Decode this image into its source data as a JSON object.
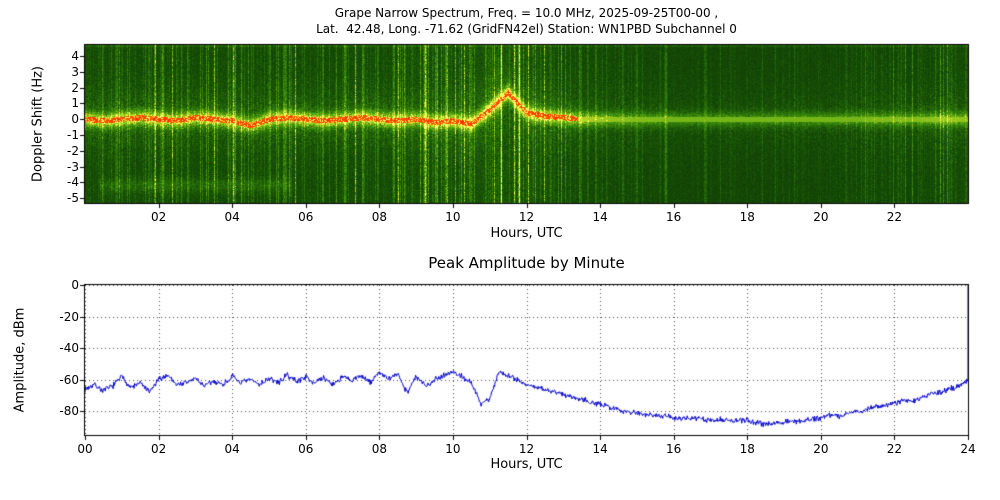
{
  "figure": {
    "background_color": "#ffffff",
    "line_blue": "#0000cd",
    "spectrogram_colors": {
      "background": "#0a3d02",
      "mid": "#3a8c0c",
      "bright": "#ffff50",
      "peak": "#ff3200"
    }
  },
  "spectrogram": {
    "title_line1": "Grape Narrow Spectrum, Freq. = 10.0 MHz, 2025-09-25T00-00 ,",
    "title_line2": "Lat.  42.48, Long. -71.62 (GridFN42el) Station: WN1PBD Subchannel 0",
    "xlabel": "Hours, UTC",
    "ylabel": "Doppler Shift (Hz)"
  },
  "amplitude_plot": {
    "title": "Peak Amplitude by Minute",
    "xlabel": "Hours, UTC",
    "ylabel": "Amplitude, dBm"
  },
  "chart_data": [
    {
      "type": "heatmap",
      "title": "Grape Narrow Spectrum, Freq. = 10.0 MHz, 2025-09-25T00-00 , Lat. 42.48, Long. -71.62 (GridFN42el) Station: WN1PBD Subchannel 0",
      "xlabel": "Hours, UTC",
      "ylabel": "Doppler Shift (Hz)",
      "xlim": [
        0,
        24
      ],
      "ylim": [
        -5.3,
        4.7
      ],
      "xtick_hours": [
        2,
        4,
        6,
        8,
        10,
        12,
        14,
        16,
        18,
        20,
        22
      ],
      "xtick_labels": [
        "02",
        "04",
        "06",
        "08",
        "10",
        "12",
        "14",
        "16",
        "18",
        "20",
        "22"
      ],
      "ytick_values": [
        4,
        3,
        2,
        1,
        0,
        -1,
        -2,
        -3,
        -4,
        -5
      ],
      "colormap": "green-yellow-red signal intensity",
      "sample_step_hours": 0.5,
      "carrier_doppler_hz": [
        0,
        -0.1,
        0,
        0.1,
        0,
        -0.1,
        0.1,
        0,
        -0.1,
        -0.4,
        0,
        0.1,
        0,
        -0.1,
        0,
        0.1,
        0,
        -0.1,
        0,
        -0.2,
        -0.1,
        -0.3,
        0.6,
        1.7,
        0.4,
        0.2,
        0.1,
        0,
        0,
        0,
        0,
        0,
        0,
        0,
        0,
        0,
        0,
        0,
        0,
        0,
        0,
        0,
        0,
        0,
        0,
        0,
        0,
        0,
        0
      ],
      "carrier_intensity": [
        0.9,
        0.85,
        0.9,
        0.85,
        0.9,
        0.85,
        0.9,
        0.9,
        0.85,
        0.8,
        0.9,
        0.85,
        0.9,
        0.9,
        0.85,
        0.9,
        0.9,
        0.85,
        0.8,
        0.85,
        0.9,
        0.95,
        1.0,
        1.0,
        0.95,
        0.9,
        0.8,
        0.7,
        0.6,
        0.55,
        0.5,
        0.5,
        0.45,
        0.45,
        0.45,
        0.45,
        0.45,
        0.45,
        0.45,
        0.45,
        0.45,
        0.45,
        0.45,
        0.5,
        0.5,
        0.5,
        0.55,
        0.6,
        0.55
      ],
      "broadband_noise_intensity": [
        0.5,
        0.55,
        0.5,
        0.45,
        0.55,
        0.5,
        0.45,
        0.5,
        0.55,
        0.5,
        0.45,
        0.5,
        0.5,
        0.45,
        0.5,
        0.55,
        0.5,
        0.55,
        0.6,
        0.7,
        0.75,
        0.85,
        0.95,
        0.95,
        0.9,
        0.75,
        0.6,
        0.5,
        0.4,
        0.35,
        0.3,
        0.28,
        0.22,
        0.18,
        0.15,
        0.15,
        0.15,
        0.15,
        0.15,
        0.18,
        0.2,
        0.22,
        0.25,
        0.25,
        0.28,
        0.3,
        0.35,
        0.8,
        0.3
      ],
      "features": [
        "Strong carrier band near 0 Hz with red peak trace from 00:00 to about 13:00 UTC",
        "Doppler excursion up to about +2 Hz near 11:00-11:30 UTC",
        "Bright broadband vertical streaking 09:00-12:30 UTC",
        "Faint secondary trace near -4 Hz from about 00:30 to 05:30 UTC",
        "Weak thin carrier line over dark background 14:00-22:00 UTC",
        "Bright full-height streak near 23:30 UTC"
      ]
    },
    {
      "type": "line",
      "title": "Peak Amplitude by Minute",
      "xlabel": "Hours, UTC",
      "ylabel": "Amplitude, dBm",
      "xlim": [
        0,
        24
      ],
      "ylim": [
        -95,
        0
      ],
      "xtick_hours": [
        0,
        2,
        4,
        6,
        8,
        10,
        12,
        14,
        16,
        18,
        20,
        22,
        24
      ],
      "xtick_labels": [
        "00",
        "02",
        "04",
        "06",
        "08",
        "10",
        "12",
        "14",
        "16",
        "18",
        "20",
        "22",
        "24"
      ],
      "ytick_values": [
        0,
        -20,
        -40,
        -60,
        -80
      ],
      "grid": "dotted",
      "legend": "none",
      "line_color": "#0000cd",
      "x_start_hour": 0,
      "x_step_hours": 0.25,
      "values_dbm": [
        -66,
        -63,
        -67,
        -64,
        -58,
        -65,
        -62,
        -68,
        -60,
        -57,
        -63,
        -62,
        -59,
        -64,
        -61,
        -63,
        -58,
        -62,
        -60,
        -63,
        -59,
        -62,
        -57,
        -61,
        -58,
        -62,
        -59,
        -63,
        -58,
        -61,
        -57,
        -62,
        -55,
        -60,
        -56,
        -68,
        -58,
        -64,
        -60,
        -57,
        -55,
        -58,
        -62,
        -75,
        -72,
        -55,
        -57,
        -60,
        -63,
        -65,
        -66,
        -68,
        -69,
        -71,
        -72,
        -74,
        -76,
        -77,
        -79,
        -80,
        -81,
        -82,
        -82,
        -83,
        -84,
        -85,
        -84,
        -85,
        -86,
        -85,
        -86,
        -86,
        -86,
        -87,
        -88,
        -87,
        -87,
        -86,
        -86,
        -85,
        -84,
        -82,
        -83,
        -81,
        -80,
        -79,
        -77,
        -76,
        -75,
        -73,
        -74,
        -71,
        -69,
        -68,
        -66,
        -64,
        -60
      ],
      "end_spike": {
        "hour": 24,
        "value_dbm": 0
      },
      "visual_noise_dbm": 2.2
    }
  ]
}
